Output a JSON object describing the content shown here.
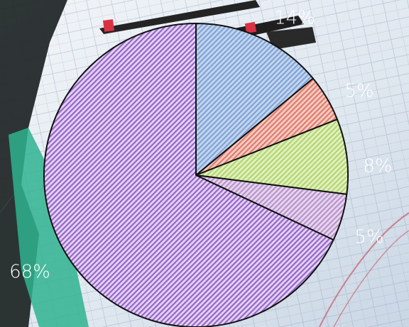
{
  "chart_data": {
    "type": "pie",
    "values": [
      14,
      5,
      8,
      5,
      68
    ],
    "labels": [
      "14%",
      "5%",
      "8%",
      "5%",
      "68%"
    ],
    "colors": [
      "#7fa3d6",
      "#e27a6a",
      "#b2d66c",
      "#b892c9",
      "#9565c8"
    ],
    "slice_fills": [
      "#c4d6ee",
      "#f3cdc6",
      "#e2f0c4",
      "#e6d6ef",
      "#e4d3f4"
    ],
    "start_angle_deg": 0,
    "direction": "clockwise",
    "pattern": "diagonal-hatch",
    "outline": "#111111"
  },
  "background": {
    "description_icon": "photo-background",
    "tones": [
      "#e9edf2",
      "#b7c7d8",
      "#1f2a2a",
      "#2fb38f"
    ]
  }
}
